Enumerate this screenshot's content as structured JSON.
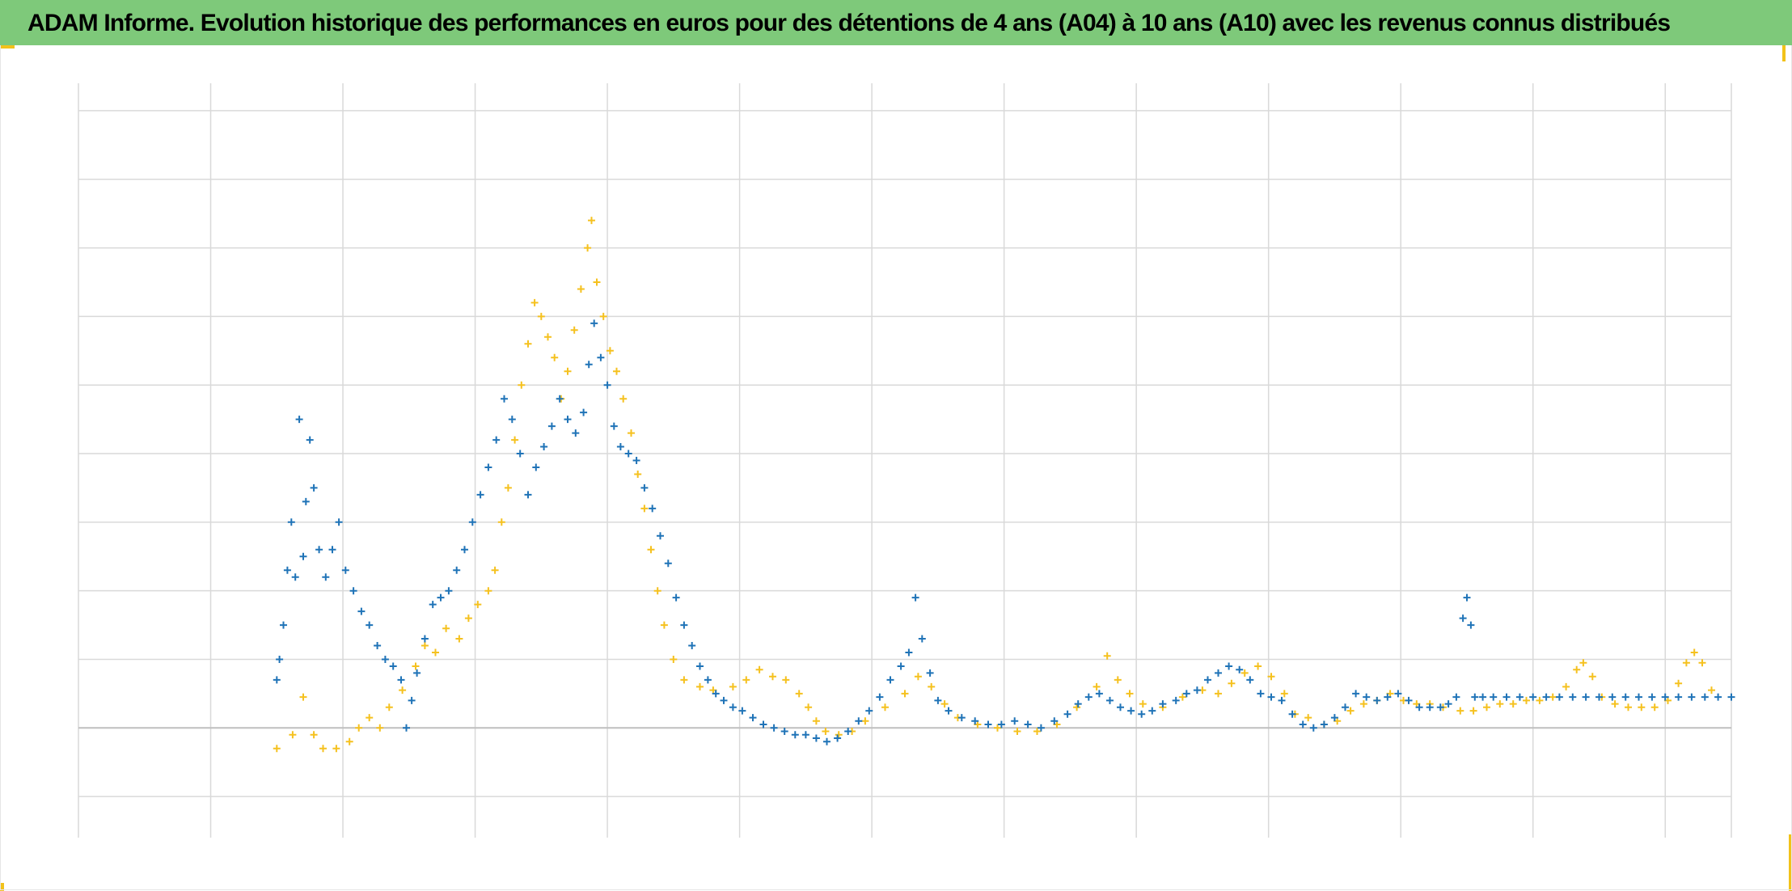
{
  "title": "ADAM Informe. Evolution historique des performances en euros pour des détentions de 4 ans (A04) à 10 ans (A10) avec les revenus connus distribués",
  "colors": {
    "title_bar": "#7ec97a",
    "corner_accent": "#f2c21a",
    "grid": "#d9d9d9",
    "axis": "#bfbfbf"
  },
  "chart_data": {
    "type": "scatter",
    "marker": "+",
    "title": "ADAM Informe. Evolution historique des performances en euros pour des détentions de 4 ans (A04) à 10 ans (A10) avec les revenus connus distribués",
    "xlabel": "",
    "ylabel": "",
    "tick_labels_visible": false,
    "legend_visible": false,
    "grid": true,
    "x_grid_divisions": 12.5,
    "xlim": [
      0,
      12.5
    ],
    "ylim": [
      -1.6,
      9.4
    ],
    "zero_line_y": 0,
    "series": [
      {
        "color": "#f5c11f",
        "points": [
          [
            1.5,
            -0.3
          ],
          [
            1.62,
            -0.1
          ],
          [
            1.7,
            0.45
          ],
          [
            1.78,
            -0.1
          ],
          [
            1.85,
            -0.3
          ],
          [
            1.95,
            -0.3
          ],
          [
            2.05,
            -0.2
          ],
          [
            2.12,
            0.0
          ],
          [
            2.2,
            0.15
          ],
          [
            2.28,
            0.0
          ],
          [
            2.35,
            0.3
          ],
          [
            2.45,
            0.55
          ],
          [
            2.55,
            0.9
          ],
          [
            2.62,
            1.2
          ],
          [
            2.7,
            1.1
          ],
          [
            2.78,
            1.45
          ],
          [
            2.88,
            1.3
          ],
          [
            2.95,
            1.6
          ],
          [
            3.02,
            1.8
          ],
          [
            3.1,
            2.0
          ],
          [
            3.15,
            2.3
          ],
          [
            3.2,
            3.0
          ],
          [
            3.25,
            3.5
          ],
          [
            3.3,
            4.2
          ],
          [
            3.35,
            5.0
          ],
          [
            3.4,
            5.6
          ],
          [
            3.45,
            6.2
          ],
          [
            3.5,
            6.0
          ],
          [
            3.55,
            5.7
          ],
          [
            3.6,
            5.4
          ],
          [
            3.65,
            4.8
          ],
          [
            3.7,
            5.2
          ],
          [
            3.75,
            5.8
          ],
          [
            3.8,
            6.4
          ],
          [
            3.85,
            7.0
          ],
          [
            3.88,
            7.4
          ],
          [
            3.92,
            6.5
          ],
          [
            3.97,
            6.0
          ],
          [
            4.02,
            5.5
          ],
          [
            4.07,
            5.2
          ],
          [
            4.12,
            4.8
          ],
          [
            4.18,
            4.3
          ],
          [
            4.23,
            3.7
          ],
          [
            4.28,
            3.2
          ],
          [
            4.33,
            2.6
          ],
          [
            4.38,
            2.0
          ],
          [
            4.43,
            1.5
          ],
          [
            4.5,
            1.0
          ],
          [
            4.58,
            0.7
          ],
          [
            4.7,
            0.6
          ],
          [
            4.8,
            0.55
          ],
          [
            4.95,
            0.6
          ],
          [
            5.05,
            0.7
          ],
          [
            5.15,
            0.85
          ],
          [
            5.25,
            0.75
          ],
          [
            5.35,
            0.7
          ],
          [
            5.45,
            0.5
          ],
          [
            5.52,
            0.3
          ],
          [
            5.58,
            0.1
          ],
          [
            5.65,
            -0.05
          ],
          [
            5.75,
            -0.1
          ],
          [
            5.85,
            -0.05
          ],
          [
            5.95,
            0.1
          ],
          [
            6.1,
            0.3
          ],
          [
            6.25,
            0.5
          ],
          [
            6.35,
            0.75
          ],
          [
            6.45,
            0.6
          ],
          [
            6.55,
            0.35
          ],
          [
            6.65,
            0.15
          ],
          [
            6.8,
            0.05
          ],
          [
            6.95,
            0.0
          ],
          [
            7.1,
            -0.05
          ],
          [
            7.25,
            -0.05
          ],
          [
            7.4,
            0.05
          ],
          [
            7.55,
            0.3
          ],
          [
            7.7,
            0.6
          ],
          [
            7.78,
            1.05
          ],
          [
            7.86,
            0.7
          ],
          [
            7.95,
            0.5
          ],
          [
            8.05,
            0.35
          ],
          [
            8.2,
            0.3
          ],
          [
            8.35,
            0.45
          ],
          [
            8.5,
            0.55
          ],
          [
            8.62,
            0.5
          ],
          [
            8.72,
            0.65
          ],
          [
            8.82,
            0.8
          ],
          [
            8.92,
            0.9
          ],
          [
            9.02,
            0.75
          ],
          [
            9.12,
            0.5
          ],
          [
            9.2,
            0.2
          ],
          [
            9.3,
            0.15
          ],
          [
            9.42,
            0.05
          ],
          [
            9.52,
            0.1
          ],
          [
            9.62,
            0.25
          ],
          [
            9.72,
            0.35
          ],
          [
            9.82,
            0.4
          ],
          [
            9.92,
            0.5
          ],
          [
            10.02,
            0.4
          ],
          [
            10.12,
            0.35
          ],
          [
            10.22,
            0.35
          ],
          [
            10.32,
            0.3
          ],
          [
            10.45,
            0.25
          ],
          [
            10.55,
            0.25
          ],
          [
            10.65,
            0.3
          ],
          [
            10.75,
            0.35
          ],
          [
            10.85,
            0.35
          ],
          [
            10.95,
            0.4
          ],
          [
            11.05,
            0.4
          ],
          [
            11.15,
            0.45
          ],
          [
            11.25,
            0.6
          ],
          [
            11.33,
            0.85
          ],
          [
            11.38,
            0.95
          ],
          [
            11.45,
            0.75
          ],
          [
            11.52,
            0.45
          ],
          [
            11.62,
            0.35
          ],
          [
            11.72,
            0.3
          ],
          [
            11.82,
            0.3
          ],
          [
            11.92,
            0.3
          ],
          [
            12.02,
            0.4
          ],
          [
            12.1,
            0.65
          ],
          [
            12.16,
            0.95
          ],
          [
            12.22,
            1.1
          ],
          [
            12.28,
            0.95
          ],
          [
            12.35,
            0.55
          ]
        ]
      },
      {
        "color": "#1f73b7",
        "points": [
          [
            1.5,
            0.7
          ],
          [
            1.52,
            1.0
          ],
          [
            1.55,
            1.5
          ],
          [
            1.58,
            2.3
          ],
          [
            1.61,
            3.0
          ],
          [
            1.64,
            2.2
          ],
          [
            1.67,
            4.5
          ],
          [
            1.7,
            2.5
          ],
          [
            1.72,
            3.3
          ],
          [
            1.75,
            4.2
          ],
          [
            1.78,
            3.5
          ],
          [
            1.82,
            2.6
          ],
          [
            1.87,
            2.2
          ],
          [
            1.92,
            2.6
          ],
          [
            1.97,
            3.0
          ],
          [
            2.02,
            2.3
          ],
          [
            2.08,
            2.0
          ],
          [
            2.14,
            1.7
          ],
          [
            2.2,
            1.5
          ],
          [
            2.26,
            1.2
          ],
          [
            2.32,
            1.0
          ],
          [
            2.38,
            0.9
          ],
          [
            2.44,
            0.7
          ],
          [
            2.48,
            0.0
          ],
          [
            2.52,
            0.4
          ],
          [
            2.56,
            0.8
          ],
          [
            2.62,
            1.3
          ],
          [
            2.68,
            1.8
          ],
          [
            2.74,
            1.9
          ],
          [
            2.8,
            2.0
          ],
          [
            2.86,
            2.3
          ],
          [
            2.92,
            2.6
          ],
          [
            2.98,
            3.0
          ],
          [
            3.04,
            3.4
          ],
          [
            3.1,
            3.8
          ],
          [
            3.16,
            4.2
          ],
          [
            3.22,
            4.8
          ],
          [
            3.28,
            4.5
          ],
          [
            3.34,
            4.0
          ],
          [
            3.4,
            3.4
          ],
          [
            3.46,
            3.8
          ],
          [
            3.52,
            4.1
          ],
          [
            3.58,
            4.4
          ],
          [
            3.64,
            4.8
          ],
          [
            3.7,
            4.5
          ],
          [
            3.76,
            4.3
          ],
          [
            3.82,
            4.6
          ],
          [
            3.86,
            5.3
          ],
          [
            3.9,
            5.9
          ],
          [
            3.95,
            5.4
          ],
          [
            4.0,
            5.0
          ],
          [
            4.05,
            4.4
          ],
          [
            4.1,
            4.1
          ],
          [
            4.16,
            4.0
          ],
          [
            4.22,
            3.9
          ],
          [
            4.28,
            3.5
          ],
          [
            4.34,
            3.2
          ],
          [
            4.4,
            2.8
          ],
          [
            4.46,
            2.4
          ],
          [
            4.52,
            1.9
          ],
          [
            4.58,
            1.5
          ],
          [
            4.64,
            1.2
          ],
          [
            4.7,
            0.9
          ],
          [
            4.76,
            0.7
          ],
          [
            4.82,
            0.5
          ],
          [
            4.88,
            0.4
          ],
          [
            4.95,
            0.3
          ],
          [
            5.02,
            0.25
          ],
          [
            5.1,
            0.15
          ],
          [
            5.18,
            0.05
          ],
          [
            5.26,
            0.0
          ],
          [
            5.34,
            -0.05
          ],
          [
            5.42,
            -0.1
          ],
          [
            5.5,
            -0.1
          ],
          [
            5.58,
            -0.15
          ],
          [
            5.66,
            -0.2
          ],
          [
            5.74,
            -0.15
          ],
          [
            5.82,
            -0.05
          ],
          [
            5.9,
            0.1
          ],
          [
            5.98,
            0.25
          ],
          [
            6.06,
            0.45
          ],
          [
            6.14,
            0.7
          ],
          [
            6.22,
            0.9
          ],
          [
            6.28,
            1.1
          ],
          [
            6.33,
            1.9
          ],
          [
            6.38,
            1.3
          ],
          [
            6.44,
            0.8
          ],
          [
            6.5,
            0.4
          ],
          [
            6.58,
            0.25
          ],
          [
            6.68,
            0.15
          ],
          [
            6.78,
            0.1
          ],
          [
            6.88,
            0.05
          ],
          [
            6.98,
            0.05
          ],
          [
            7.08,
            0.1
          ],
          [
            7.18,
            0.05
          ],
          [
            7.28,
            0.0
          ],
          [
            7.38,
            0.1
          ],
          [
            7.48,
            0.2
          ],
          [
            7.56,
            0.35
          ],
          [
            7.64,
            0.45
          ],
          [
            7.72,
            0.5
          ],
          [
            7.8,
            0.4
          ],
          [
            7.88,
            0.3
          ],
          [
            7.96,
            0.25
          ],
          [
            8.04,
            0.2
          ],
          [
            8.12,
            0.25
          ],
          [
            8.2,
            0.35
          ],
          [
            8.3,
            0.4
          ],
          [
            8.38,
            0.5
          ],
          [
            8.46,
            0.55
          ],
          [
            8.54,
            0.7
          ],
          [
            8.62,
            0.8
          ],
          [
            8.7,
            0.9
          ],
          [
            8.78,
            0.85
          ],
          [
            8.86,
            0.7
          ],
          [
            8.94,
            0.5
          ],
          [
            9.02,
            0.45
          ],
          [
            9.1,
            0.4
          ],
          [
            9.18,
            0.2
          ],
          [
            9.26,
            0.05
          ],
          [
            9.34,
            0.0
          ],
          [
            9.42,
            0.05
          ],
          [
            9.5,
            0.15
          ],
          [
            9.58,
            0.3
          ],
          [
            9.66,
            0.5
          ],
          [
            9.74,
            0.45
          ],
          [
            9.82,
            0.4
          ],
          [
            9.9,
            0.45
          ],
          [
            9.98,
            0.5
          ],
          [
            10.06,
            0.4
          ],
          [
            10.14,
            0.3
          ],
          [
            10.22,
            0.3
          ],
          [
            10.3,
            0.3
          ],
          [
            10.36,
            0.35
          ],
          [
            10.42,
            0.45
          ],
          [
            10.47,
            1.6
          ],
          [
            10.5,
            1.9
          ],
          [
            10.53,
            1.5
          ],
          [
            10.56,
            0.45
          ],
          [
            10.62,
            0.45
          ],
          [
            10.7,
            0.45
          ],
          [
            10.8,
            0.45
          ],
          [
            10.9,
            0.45
          ],
          [
            11.0,
            0.45
          ],
          [
            11.1,
            0.45
          ],
          [
            11.2,
            0.45
          ],
          [
            11.3,
            0.45
          ],
          [
            11.4,
            0.45
          ],
          [
            11.5,
            0.45
          ],
          [
            11.6,
            0.45
          ],
          [
            11.7,
            0.45
          ],
          [
            11.8,
            0.45
          ],
          [
            11.9,
            0.45
          ],
          [
            12.0,
            0.45
          ],
          [
            12.1,
            0.45
          ],
          [
            12.2,
            0.45
          ],
          [
            12.3,
            0.45
          ],
          [
            12.4,
            0.45
          ],
          [
            12.5,
            0.45
          ]
        ]
      }
    ]
  }
}
